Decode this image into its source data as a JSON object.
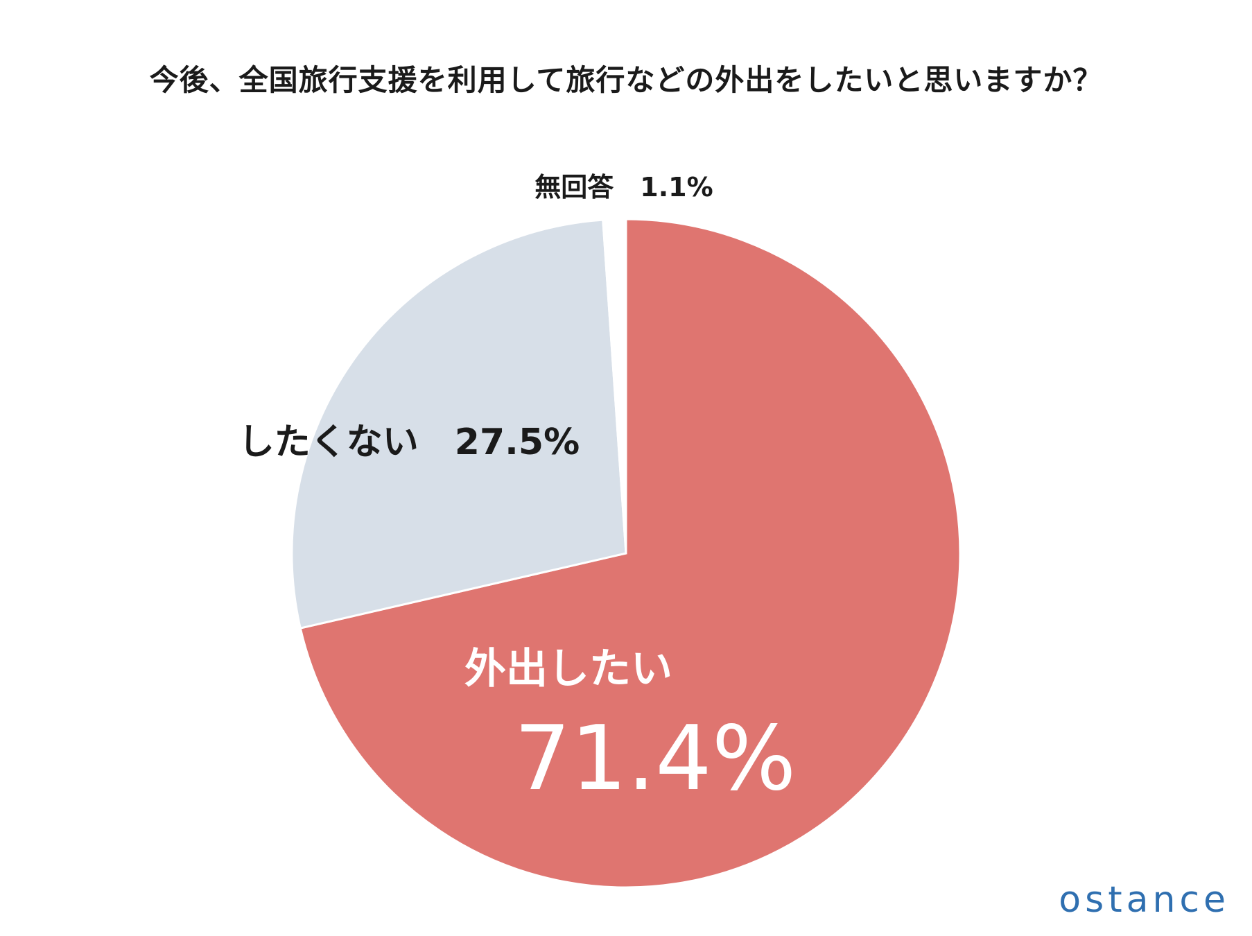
{
  "chart_data": {
    "type": "pie",
    "title": "今後、全国旅行支援を利用して旅行などの外出をしたいと思いますか？",
    "slices": [
      {
        "label": "外出したい",
        "value": 71.4,
        "value_label": "71.4%",
        "color": "#df7570"
      },
      {
        "label": "したくない",
        "value": 27.5,
        "value_label": "27.5%",
        "color": "#d7dfe8"
      },
      {
        "label": "無回答",
        "value": 1.1,
        "value_label": "1.1%",
        "color": "#ffffff"
      }
    ],
    "start_angle": "12 o'clock",
    "direction": "clockwise"
  },
  "brand": {
    "logo_text": "ostance",
    "color": "#2f6fb0"
  }
}
